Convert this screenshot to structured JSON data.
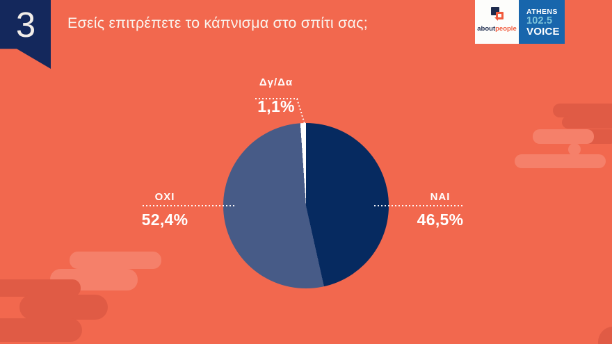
{
  "slide": {
    "number": "3",
    "question": "Εσείς επιτρέπετε το κάπνισμα στο σπίτι σας;"
  },
  "logos": {
    "aboutpeople": {
      "part1": "about",
      "part2": "people"
    },
    "athens_voice": {
      "line1": "ATHENS",
      "line2": "102.5",
      "line3": "VOICE"
    }
  },
  "chart_data": {
    "type": "pie",
    "title": "Εσείς επιτρέπετε το κάπνισμα στο σπίτι σας;",
    "start_angle_deg": 0,
    "direction": "clockwise",
    "slices": [
      {
        "label": "ΝΑΙ",
        "value": 46.5,
        "display": "46,5%",
        "color": "#062A60"
      },
      {
        "label": "ΟΧΙ",
        "value": 52.4,
        "display": "52,4%",
        "color": "#475B87"
      },
      {
        "label": "Δγ/Δα",
        "value": 1.1,
        "display": "1,1%",
        "color": "#FFFFFF"
      }
    ],
    "legend_position": "callout-labels",
    "labels_leader_lines": "dotted-white"
  },
  "colors": {
    "background": "#F2684E",
    "cloud_light": "#F5806A",
    "cloud_dark": "#E05B45",
    "tab_navy": "#14285C",
    "pie_navy": "#062A60",
    "pie_slate": "#475B87",
    "pie_white": "#FFFFFF",
    "question_text": "#FAF4EE",
    "logo_orange": "#F15B3D",
    "logo_navy": "#1E2B4D",
    "logo_blue_bg": "#1866AC",
    "logo_light_blue": "#7EC5DB"
  }
}
